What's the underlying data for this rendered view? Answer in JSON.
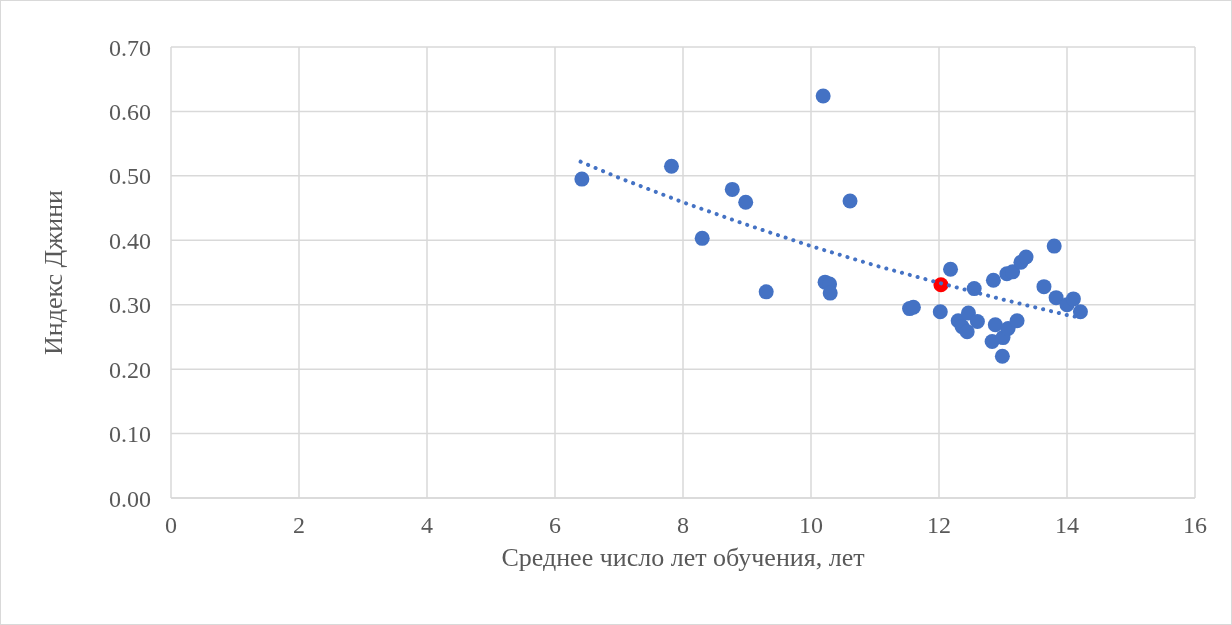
{
  "chart_data": {
    "type": "scatter",
    "xlabel": "Среднее число лет обучения, лет",
    "ylabel": "Индекс Джини",
    "xlim": [
      0,
      16
    ],
    "xticks": [
      0,
      2,
      4,
      6,
      8,
      10,
      12,
      14,
      16
    ],
    "ylim": [
      0,
      0.7
    ],
    "yticks": [
      {
        "value": 0,
        "label": "0.00"
      },
      {
        "value": 0.1,
        "label": "0.10"
      },
      {
        "value": 0.2,
        "label": "0.20"
      },
      {
        "value": 0.3,
        "label": "0.30"
      },
      {
        "value": 0.4,
        "label": "0.40"
      },
      {
        "value": 0.5,
        "label": "0.50"
      },
      {
        "value": 0.6,
        "label": "0.60"
      },
      {
        "value": 0.7,
        "label": "0.70"
      }
    ],
    "grid": true,
    "legend": false,
    "marker": "circle",
    "series": [
      {
        "color": "#4472c4",
        "x": [
          6.42,
          7.82,
          8.3,
          8.77,
          8.98,
          9.3,
          10.19,
          10.22,
          10.29,
          10.3,
          10.61,
          11.54,
          11.6,
          12.02,
          12.03,
          12.18,
          12.3,
          12.36,
          12.44,
          12.46,
          12.55,
          12.6,
          12.83,
          12.85,
          12.88,
          12.99,
          13.0,
          13.06,
          13.08,
          13.15,
          13.22,
          13.28,
          13.36,
          13.64,
          13.8,
          13.83,
          14.0,
          14.1,
          14.21
        ],
        "values": [
          0.495,
          0.515,
          0.403,
          0.479,
          0.459,
          0.32,
          0.624,
          0.335,
          0.332,
          0.318,
          0.461,
          0.294,
          0.296,
          0.289,
          0.331,
          0.355,
          0.275,
          0.266,
          0.258,
          0.287,
          0.325,
          0.274,
          0.243,
          0.338,
          0.269,
          0.22,
          0.249,
          0.348,
          0.263,
          0.351,
          0.275,
          0.366,
          0.374,
          0.328,
          0.391,
          0.311,
          0.3,
          0.309,
          0.289
        ],
        "colors": [
          "#4472c4",
          "#4472c4",
          "#4472c4",
          "#4472c4",
          "#4472c4",
          "#4472c4",
          "#4472c4",
          "#4472c4",
          "#4472c4",
          "#4472c4",
          "#4472c4",
          "#4472c4",
          "#4472c4",
          "#4472c4",
          "#ff0000",
          "#4472c4",
          "#4472c4",
          "#4472c4",
          "#4472c4",
          "#4472c4",
          "#4472c4",
          "#4472c4",
          "#4472c4",
          "#4472c4",
          "#4472c4",
          "#4472c4",
          "#4472c4",
          "#4472c4",
          "#4472c4",
          "#4472c4",
          "#4472c4",
          "#4472c4",
          "#4472c4",
          "#4472c4",
          "#4472c4",
          "#4472c4",
          "#4472c4",
          "#4472c4",
          "#4472c4"
        ]
      },
      {
        "type": "line",
        "color": "#4472c4",
        "line_style": "dotted",
        "marker": "none",
        "x": [
          6.4,
          7,
          8,
          9,
          10,
          11,
          12,
          13,
          14,
          14.2
        ],
        "values": [
          0.522,
          0.497,
          0.459,
          0.424,
          0.391,
          0.361,
          0.334,
          0.308,
          0.284,
          0.28
        ]
      }
    ]
  }
}
